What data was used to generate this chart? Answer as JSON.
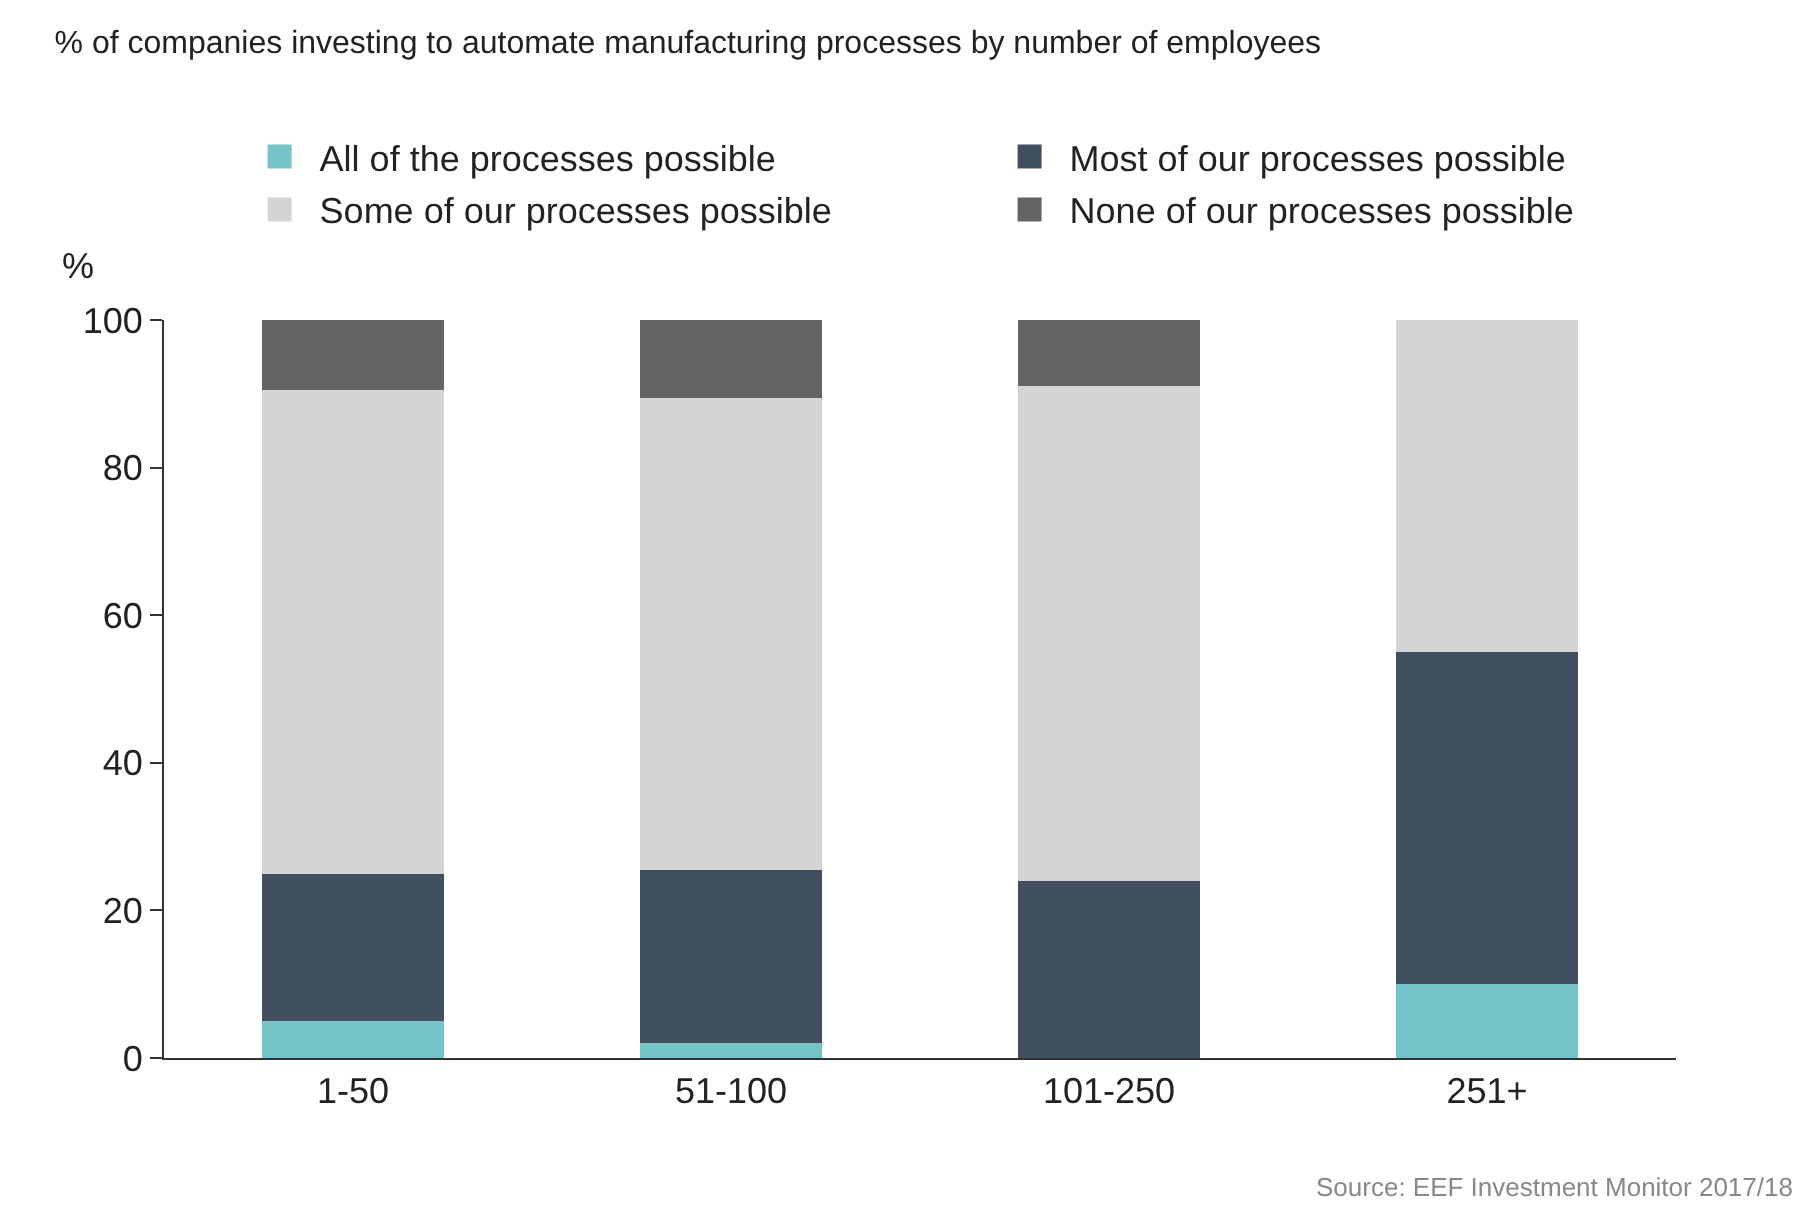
{
  "chart_data": {
    "type": "bar",
    "title": "% of companies investing to automate manufacturing processes by number of employees",
    "ylabel": "%",
    "categories": [
      "1-50",
      "51-100",
      "101-250",
      "251+"
    ],
    "stacked": true,
    "series": [
      {
        "name": "All of the processes possible",
        "color": "#74c3c6",
        "values": [
          5,
          2,
          0,
          10
        ]
      },
      {
        "name": "Most of our processes possible",
        "color": "#41505f",
        "values": [
          20,
          23.5,
          24,
          45
        ]
      },
      {
        "name": "Some of our processes possible",
        "color": "#d3d4d6",
        "values": [
          65.5,
          64,
          67,
          45
        ]
      },
      {
        "name": "None of our processes possible",
        "color": "#646464",
        "values": [
          9.5,
          10.5,
          9,
          0
        ]
      }
    ],
    "ylim": [
      0,
      100
    ],
    "yticks": [
      0,
      20,
      40,
      60,
      80,
      100
    ],
    "grid": false,
    "legend": "top",
    "annotations": [
      "Source: EEF Investment Monitor 2017/18"
    ]
  }
}
